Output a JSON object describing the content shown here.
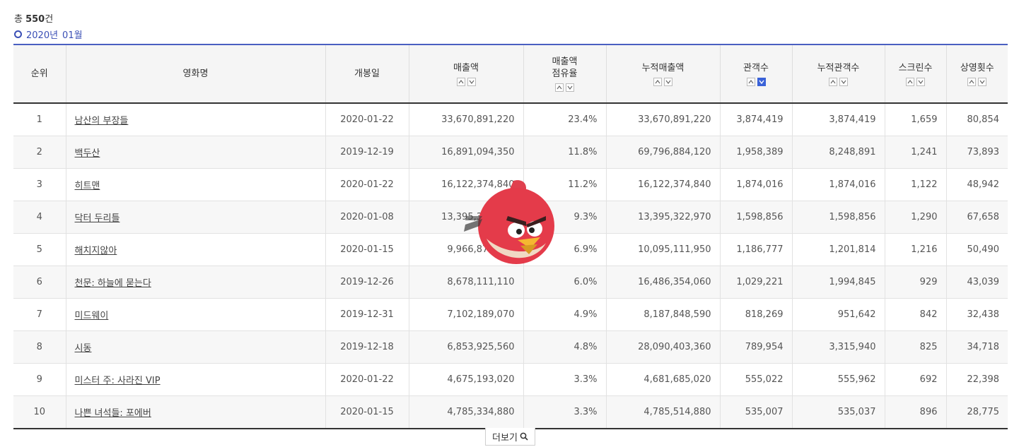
{
  "summary": {
    "prefix": "총 ",
    "count": "550",
    "suffix": "건"
  },
  "period": {
    "year": "2020년",
    "month": "01월"
  },
  "columns": [
    "순위",
    "영화명",
    "개봉일",
    "매출액",
    "매출액\n점유율",
    "누적매출액",
    "관객수",
    "누적관객수",
    "스크린수",
    "상영횟수"
  ],
  "rows": [
    [
      "1",
      "남산의 부장들",
      "2020-01-22",
      "33,670,891,220",
      "23.4%",
      "33,670,891,220",
      "3,874,419",
      "3,874,419",
      "1,659",
      "80,854"
    ],
    [
      "2",
      "백두산",
      "2019-12-19",
      "16,891,094,350",
      "11.8%",
      "69,796,884,120",
      "1,958,389",
      "8,248,891",
      "1,241",
      "73,893"
    ],
    [
      "3",
      "히트맨",
      "2020-01-22",
      "16,122,374,840",
      "11.2%",
      "16,122,374,840",
      "1,874,016",
      "1,874,016",
      "1,122",
      "48,942"
    ],
    [
      "4",
      "닥터 두리틀",
      "2020-01-08",
      "13,395,322,970",
      "9.3%",
      "13,395,322,970",
      "1,598,856",
      "1,598,856",
      "1,290",
      "67,658"
    ],
    [
      "5",
      "해치지않아",
      "2020-01-15",
      "9,966,878,950",
      "6.9%",
      "10,095,111,950",
      "1,186,777",
      "1,201,814",
      "1,216",
      "50,490"
    ],
    [
      "6",
      "천문: 하늘에 묻는다",
      "2019-12-26",
      "8,678,111,110",
      "6.0%",
      "16,486,354,060",
      "1,029,221",
      "1,994,845",
      "929",
      "43,039"
    ],
    [
      "7",
      "미드웨이",
      "2019-12-31",
      "7,102,189,070",
      "4.9%",
      "8,187,848,590",
      "818,269",
      "951,642",
      "842",
      "32,438"
    ],
    [
      "8",
      "시동",
      "2019-12-18",
      "6,853,925,560",
      "4.8%",
      "28,090,403,360",
      "789,954",
      "3,315,940",
      "825",
      "34,718"
    ],
    [
      "9",
      "미스터 주: 사라진 VIP",
      "2020-01-22",
      "4,675,193,020",
      "3.3%",
      "4,681,685,020",
      "555,022",
      "555,962",
      "692",
      "22,398"
    ],
    [
      "10",
      "나쁜 녀석들: 포에버",
      "2020-01-15",
      "4,785,334,880",
      "3.3%",
      "4,785,514,880",
      "535,007",
      "535,037",
      "896",
      "28,775"
    ]
  ],
  "more_button": {
    "label": "더보기",
    "icon": "search-icon"
  },
  "colors": {
    "accent": "#3a4fb5",
    "active_sort": "#3a62d8"
  }
}
